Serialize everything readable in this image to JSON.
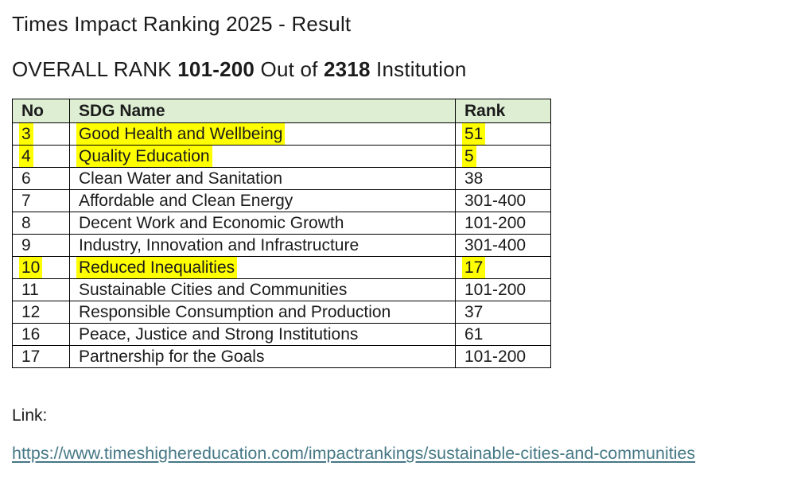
{
  "page": {
    "title": "Times Impact Ranking 2025 - Result",
    "subtitle_segments": [
      {
        "text": "OVERALL RANK ",
        "bold": false
      },
      {
        "text": "101-200",
        "bold": true
      },
      {
        "text": " Out of ",
        "bold": false
      },
      {
        "text": "2318",
        "bold": true
      },
      {
        "text": " Institution",
        "bold": false
      }
    ]
  },
  "table": {
    "columns": [
      "No",
      "SDG Name",
      "Rank"
    ],
    "rows": [
      {
        "no": "3",
        "name": "Good Health and Wellbeing",
        "rank": "51",
        "highlighted": true
      },
      {
        "no": "4",
        "name": "Quality Education",
        "rank": "5",
        "highlighted": true
      },
      {
        "no": "6",
        "name": "Clean Water and Sanitation",
        "rank": "38",
        "highlighted": false
      },
      {
        "no": "7",
        "name": "Affordable and Clean Energy",
        "rank": "301-400",
        "highlighted": false
      },
      {
        "no": "8",
        "name": "Decent Work and Economic Growth",
        "rank": "101-200",
        "highlighted": false
      },
      {
        "no": "9",
        "name": "Industry, Innovation and Infrastructure",
        "rank": "301-400",
        "highlighted": false
      },
      {
        "no": "10",
        "name": "Reduced Inequalities",
        "rank": "17",
        "highlighted": true
      },
      {
        "no": "11",
        "name": "Sustainable Cities and Communities",
        "rank": "101-200",
        "highlighted": false
      },
      {
        "no": "12",
        "name": "Responsible Consumption and Production",
        "rank": "37",
        "highlighted": false
      },
      {
        "no": "16",
        "name": "Peace, Justice and Strong Institutions",
        "rank": "61",
        "highlighted": false
      },
      {
        "no": "17",
        "name": "Partnership for the Goals",
        "rank": "101-200",
        "highlighted": false
      }
    ]
  },
  "footer": {
    "link_label": "Link:",
    "link_url": "https://www.timeshighereducation.com/impactrankings/sustainable-cities-and-communities"
  },
  "colors": {
    "header_bg": "#ddeed3",
    "highlight": "#ffff00",
    "link": "#467886",
    "text": "#1b1b1b",
    "border": "#000000"
  }
}
